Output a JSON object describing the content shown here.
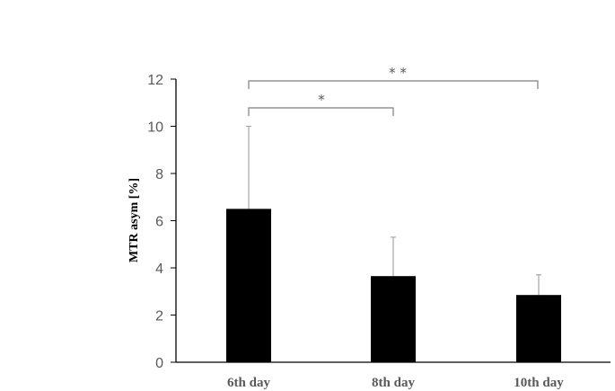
{
  "chart_data": {
    "type": "bar",
    "title": "",
    "xlabel": "",
    "ylabel": "MTR asym [%]",
    "ylim": [
      0,
      12
    ],
    "yticks": [
      0,
      2,
      4,
      6,
      8,
      10,
      12
    ],
    "categories": [
      "6th day",
      "8th day",
      "10th day"
    ],
    "values": [
      6.5,
      3.65,
      2.85
    ],
    "error_upper": [
      3.5,
      1.65,
      0.85
    ],
    "bar_color": "#000000",
    "grid": false,
    "legend": null,
    "annotations": [
      {
        "from": "6th day",
        "to": "8th day",
        "label": "*"
      },
      {
        "from": "6th day",
        "to": "10th day",
        "label": "* *"
      }
    ]
  },
  "labels": {
    "ylabel": "MTR asym [%]",
    "yticks": [
      "0",
      "2",
      "4",
      "6",
      "8",
      "10",
      "12"
    ],
    "categories": [
      "6th day",
      "8th day",
      "10th day"
    ],
    "sig1": "*",
    "sig2": "* *"
  }
}
